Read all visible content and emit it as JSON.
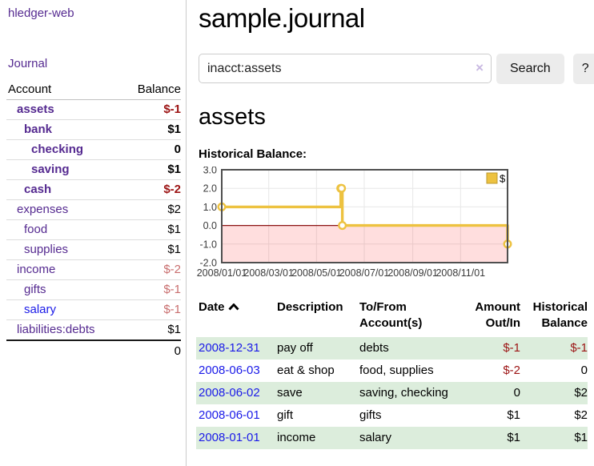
{
  "app": {
    "brand": "hledger-web"
  },
  "sidebar": {
    "journal_link": "Journal",
    "table": {
      "account_header": "Account",
      "balance_header": "Balance",
      "rows": [
        {
          "account": "assets",
          "balance": "$-1",
          "indent": 1,
          "bold": true,
          "balance_style": "neg-strong",
          "link_style": "purple"
        },
        {
          "account": "bank",
          "balance": "$1",
          "indent": 2,
          "bold": true,
          "balance_style": "pos",
          "link_style": "purple"
        },
        {
          "account": "checking",
          "balance": "0",
          "indent": 3,
          "bold": true,
          "balance_style": "pos",
          "link_style": "purple"
        },
        {
          "account": "saving",
          "balance": "$1",
          "indent": 3,
          "bold": true,
          "balance_style": "pos",
          "link_style": "purple"
        },
        {
          "account": "cash",
          "balance": "$-2",
          "indent": 2,
          "bold": true,
          "balance_style": "neg-strong",
          "link_style": "purple"
        },
        {
          "account": "expenses",
          "balance": "$2",
          "indent": 1,
          "bold": false,
          "balance_style": "pos",
          "link_style": "purple"
        },
        {
          "account": "food",
          "balance": "$1",
          "indent": 2,
          "bold": false,
          "balance_style": "pos",
          "link_style": "purple"
        },
        {
          "account": "supplies",
          "balance": "$1",
          "indent": 2,
          "bold": false,
          "balance_style": "pos",
          "link_style": "purple"
        },
        {
          "account": "income",
          "balance": "$-2",
          "indent": 1,
          "bold": false,
          "balance_style": "neg-soft",
          "link_style": "purple"
        },
        {
          "account": "gifts",
          "balance": "$-1",
          "indent": 2,
          "bold": false,
          "balance_style": "neg-soft",
          "link_style": "purple"
        },
        {
          "account": "salary",
          "balance": "$-1",
          "indent": 2,
          "bold": false,
          "balance_style": "neg-soft",
          "link_style": "blue"
        },
        {
          "account": "liabilities:debts",
          "balance": "$1",
          "indent": 1,
          "bold": false,
          "balance_style": "pos",
          "link_style": "purple"
        }
      ],
      "total": "0"
    }
  },
  "header": {
    "title": "sample.journal"
  },
  "search": {
    "value": "inacct:assets",
    "clear_icon": "×",
    "button": "Search",
    "help_button": "?"
  },
  "account_page": {
    "heading": "assets",
    "chart_label": "Historical Balance:"
  },
  "chart_data": {
    "type": "line",
    "step": true,
    "title": "Historical Balance",
    "legend": "$",
    "legend_position": "top-right",
    "grid": true,
    "x_range": [
      "2008-01-01",
      "2008-12-31"
    ],
    "ylim": [
      -2,
      3
    ],
    "y_ticks": [
      "3.0",
      "2.0",
      "1.0",
      "0.0",
      "-1.0",
      "-2.0"
    ],
    "x_tick_labels": [
      "2008/01/01",
      "2008/03/01",
      "2008/05/01",
      "2008/07/01",
      "2008/09/01",
      "2008/11/01"
    ],
    "series": [
      {
        "name": "$",
        "color": "#edc240",
        "points": [
          {
            "x": "2008-01-01",
            "y": 1
          },
          {
            "x": "2008-06-01",
            "y": 2
          },
          {
            "x": "2008-06-02",
            "y": 2
          },
          {
            "x": "2008-06-03",
            "y": 0
          },
          {
            "x": "2008-12-31",
            "y": -1
          }
        ]
      }
    ],
    "negative_region": {
      "from": 0,
      "to": -2,
      "color": "rgba(255,0,0,0.13)"
    },
    "zero_line_color": "#8b1414"
  },
  "register": {
    "headers": {
      "date": "Date",
      "description": "Description",
      "tofrom": "To/From Account(s)",
      "amount": "Amount Out/In",
      "balance": "Historical Balance"
    },
    "rows": [
      {
        "date": "2008-12-31",
        "description": "pay off",
        "accounts": "debts",
        "amount": "$-1",
        "balance": "$-1",
        "amount_style": "neg-strong",
        "balance_style": "neg-strong",
        "shaded": true
      },
      {
        "date": "2008-06-03",
        "description": "eat & shop",
        "accounts": "food, supplies",
        "amount": "$-2",
        "balance": "0",
        "amount_style": "neg-strong",
        "balance_style": "pos",
        "shaded": false
      },
      {
        "date": "2008-06-02",
        "description": "save",
        "accounts": "saving, checking",
        "amount": "0",
        "balance": "$2",
        "amount_style": "pos",
        "balance_style": "pos",
        "shaded": true
      },
      {
        "date": "2008-06-01",
        "description": "gift",
        "accounts": "gifts",
        "amount": "$1",
        "balance": "$2",
        "amount_style": "pos",
        "balance_style": "pos",
        "shaded": false
      },
      {
        "date": "2008-01-01",
        "description": "income",
        "accounts": "salary",
        "amount": "$1",
        "balance": "$1",
        "amount_style": "pos",
        "balance_style": "pos",
        "shaded": true
      }
    ]
  },
  "colors": {
    "link_purple": "#552a90",
    "link_blue": "#1a1ae8",
    "negative_strong": "#9c1414",
    "negative_soft": "#c96f6f",
    "row_green": "#dceddc",
    "chart_yellow": "#edc240",
    "chart_border": "#4f4f4f",
    "grid_line": "#e7e7e7",
    "button_gray": "#ececec"
  }
}
